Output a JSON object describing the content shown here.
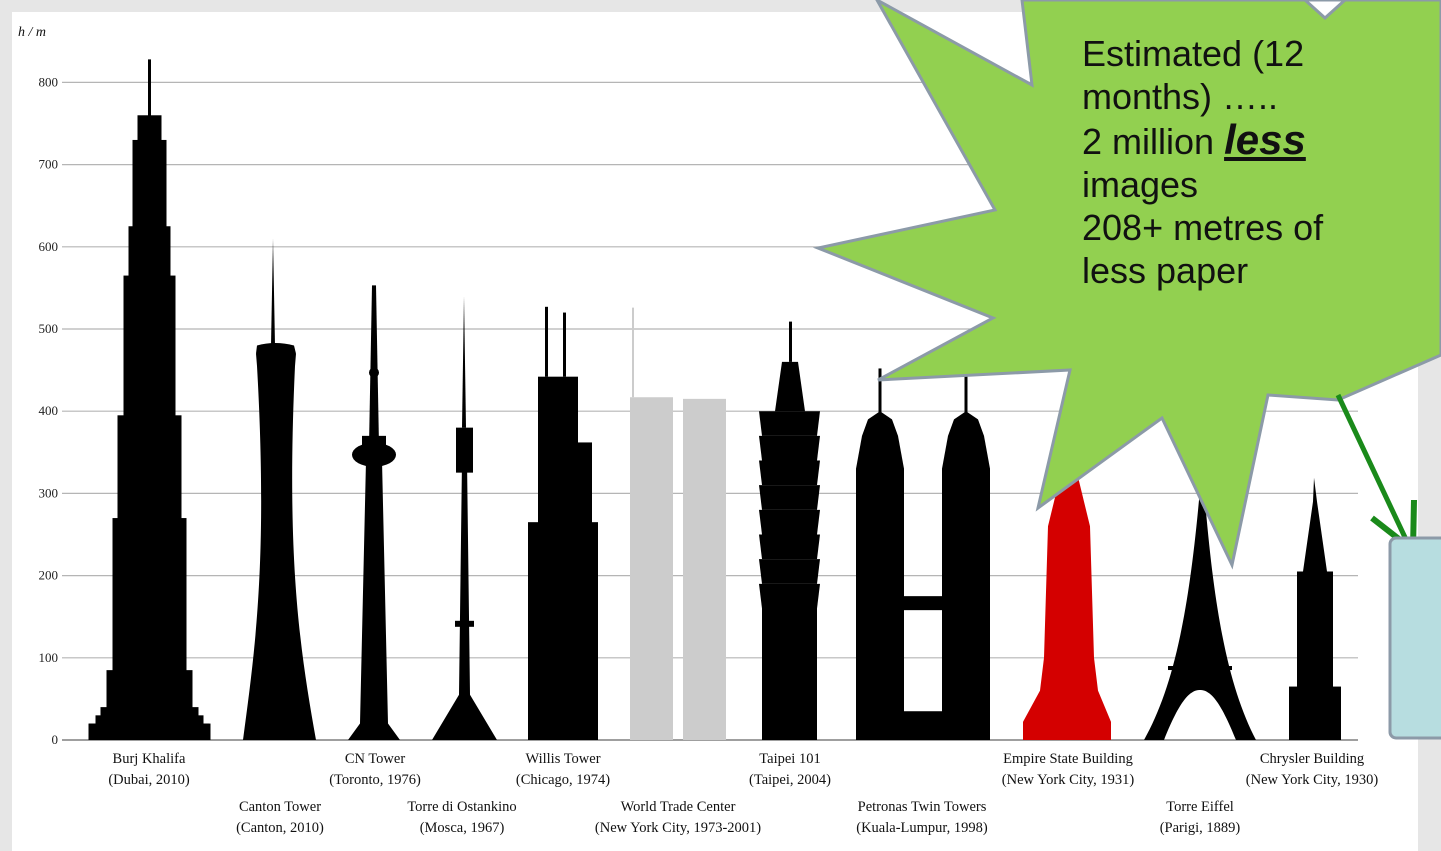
{
  "callout": {
    "line1": "Estimated (12",
    "line2": "months) …..",
    "line3_prefix": "2 million ",
    "line3_emph": "less",
    "line4": "images",
    "line5": "208+ metres of",
    "line6": "less paper"
  },
  "colors": {
    "building": "#000000",
    "destroyed": "#cccccc",
    "highlight": "#d40000",
    "star": "#92d050",
    "star_border": "#8c9aa8",
    "arrow": "#1a8a1a",
    "box": "#b7dde0"
  },
  "chart_data": {
    "type": "bar",
    "ylabel": "h / m",
    "ylim": [
      0,
      830
    ],
    "yticks": [
      0,
      100,
      200,
      300,
      400,
      500,
      600,
      700,
      800
    ],
    "grid": true,
    "buildings": [
      {
        "name": "Burj Khalifa",
        "detail": "(Dubai, 2010)",
        "height": 828,
        "color": "black"
      },
      {
        "name": "Canton Tower",
        "detail": "(Canton, 2010)",
        "height": 610,
        "color": "black"
      },
      {
        "name": "CN Tower",
        "detail": "(Toronto, 1976)",
        "height": 553,
        "color": "black"
      },
      {
        "name": "Torre di Ostankino",
        "detail": "(Mosca, 1967)",
        "height": 540,
        "color": "black"
      },
      {
        "name": "Willis Tower",
        "detail": "(Chicago, 1974)",
        "height": 527,
        "color": "black"
      },
      {
        "name": "World Trade Center",
        "detail": "(New York City, 1973-2001)",
        "height": 526,
        "color": "grey"
      },
      {
        "name": "Taipei 101",
        "detail": "(Taipei, 2004)",
        "height": 509,
        "color": "black"
      },
      {
        "name": "Petronas Twin Towers",
        "detail": "(Kuala-Lumpur, 1998)",
        "height": 452,
        "color": "black"
      },
      {
        "name": "Empire State Building",
        "detail": "(New York City, 1931)",
        "height": 381,
        "color": "red"
      },
      {
        "name": "Torre Eiffel",
        "detail": "(Parigi, 1889)",
        "height": 324,
        "color": "black"
      },
      {
        "name": "Chrysler Building",
        "detail": "(New York City, 1930)",
        "height": 319,
        "color": "black"
      }
    ]
  }
}
